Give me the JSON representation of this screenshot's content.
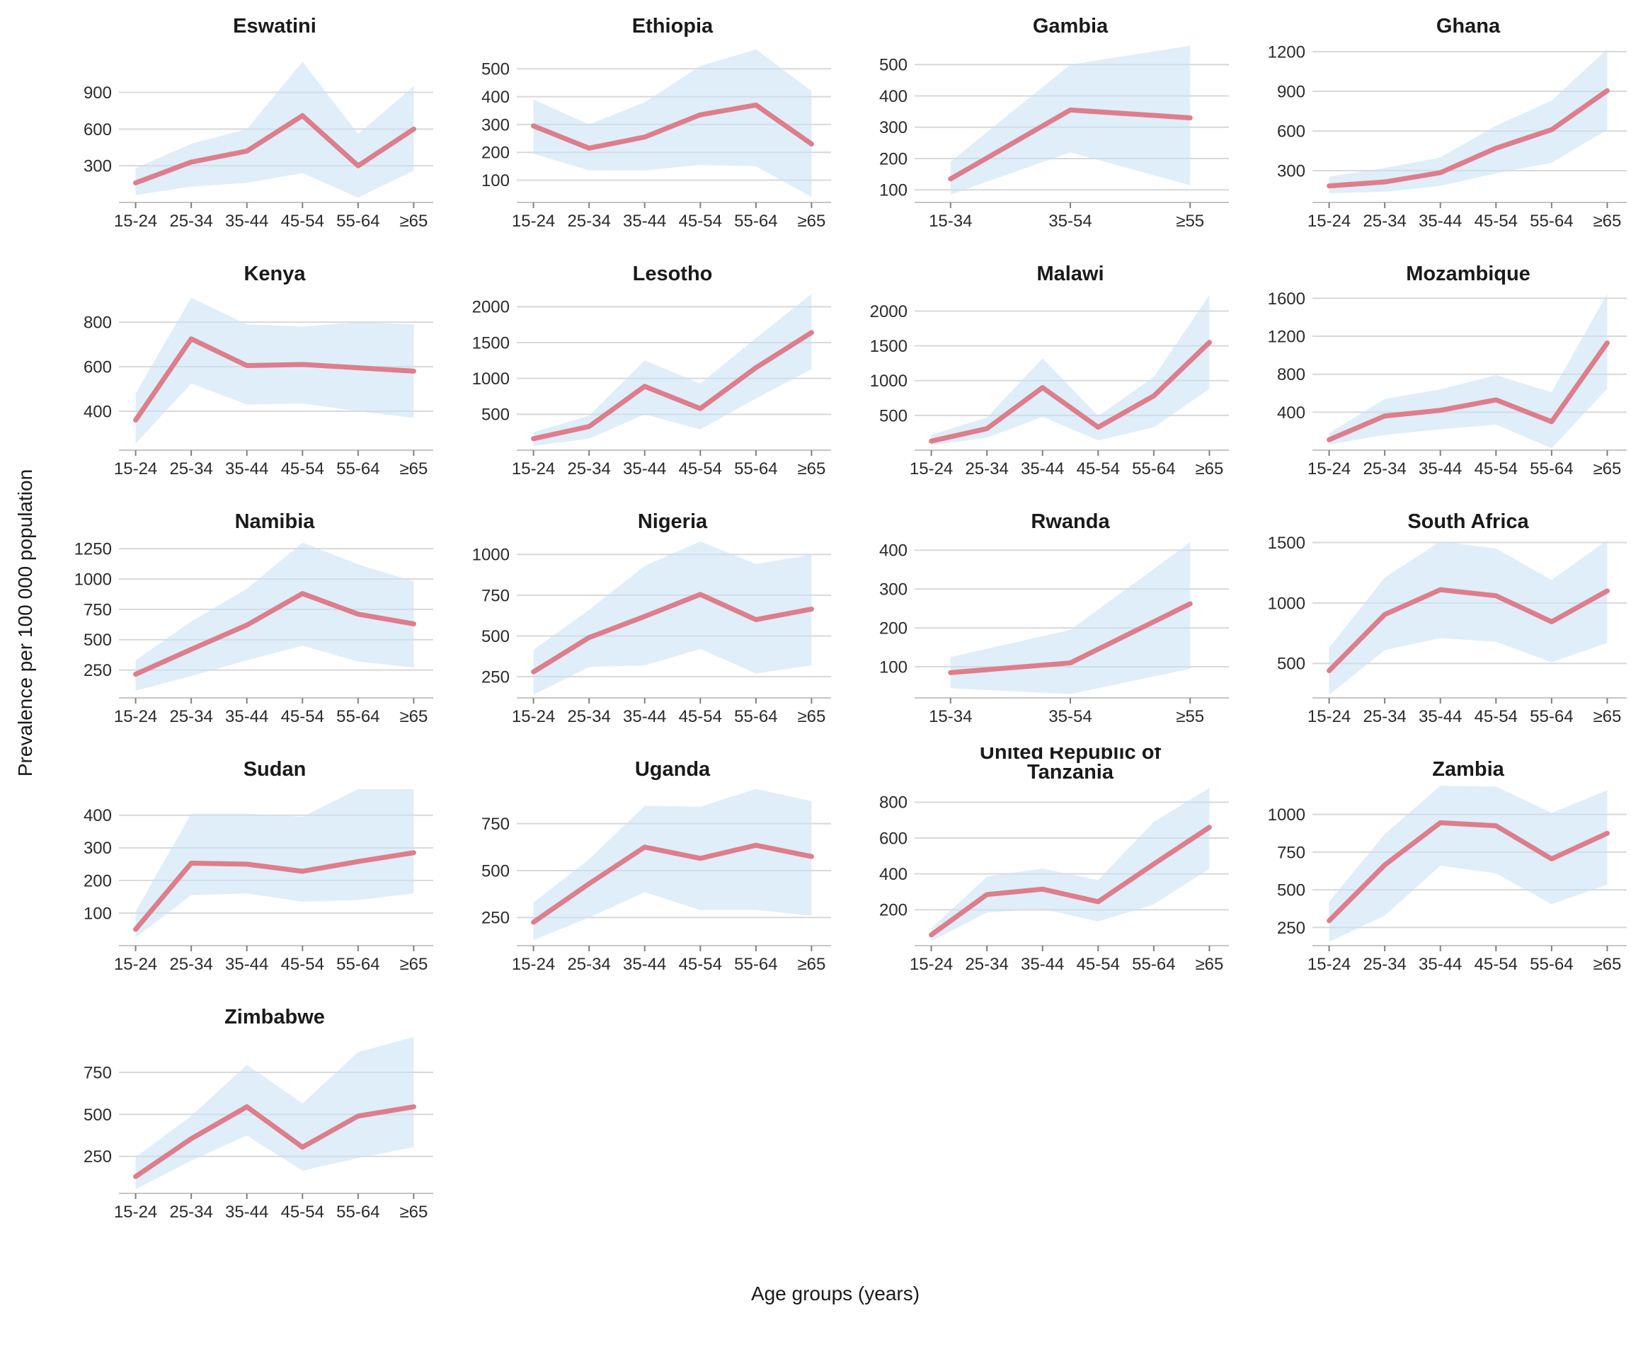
{
  "figure": {
    "kind": "faceted line chart with confidence bands"
  },
  "colors": {
    "line": "#DE7D8B",
    "band": "#C9E2F3",
    "grid": "#D8D8D8",
    "axis_line": "#C6C6C6",
    "tick_mark": "#7F7F7F",
    "tick_text": "#2B2B2B",
    "title_text": "#1A1A1A"
  },
  "chart_data": {
    "type": "line",
    "xlabel": "Age groups (years)",
    "ylabel": "Prevalence per 100 000 population",
    "legend": "none",
    "grid": "horizontal",
    "band_meaning": "uncertainty interval around prevalence estimate",
    "panels": [
      {
        "title_lines": [
          "Eswatini"
        ],
        "categories": [
          "15-24",
          "25-34",
          "35-44",
          "45-54",
          "55-64",
          "≥65"
        ],
        "values": [
          160,
          330,
          420,
          710,
          300,
          600
        ],
        "lower": [
          60,
          130,
          160,
          240,
          40,
          260
        ],
        "upper": [
          280,
          480,
          600,
          1150,
          560,
          950
        ],
        "yticks": [
          300,
          600,
          900
        ],
        "ylim": [
          0,
          1320
        ]
      },
      {
        "title_lines": [
          "Ethiopia"
        ],
        "categories": [
          "15-24",
          "25-34",
          "35-44",
          "45-54",
          "55-64",
          "≥65"
        ],
        "values": [
          295,
          215,
          255,
          335,
          370,
          230
        ],
        "lower": [
          195,
          135,
          135,
          155,
          150,
          40
        ],
        "upper": [
          390,
          300,
          380,
          510,
          570,
          420
        ],
        "yticks": [
          100,
          200,
          300,
          400,
          500
        ],
        "ylim": [
          20,
          600
        ]
      },
      {
        "title_lines": [
          "Gambia"
        ],
        "categories": [
          "15-34",
          "35-54",
          "≥55"
        ],
        "values": [
          135,
          355,
          330
        ],
        "lower": [
          85,
          220,
          115
        ],
        "upper": [
          190,
          500,
          560
        ],
        "yticks": [
          100,
          200,
          300,
          400,
          500
        ],
        "ylim": [
          60,
          575
        ]
      },
      {
        "title_lines": [
          "Ghana"
        ],
        "categories": [
          "15-24",
          "25-34",
          "35-44",
          "45-54",
          "55-64",
          "≥65"
        ],
        "values": [
          185,
          215,
          285,
          470,
          610,
          905
        ],
        "lower": [
          130,
          140,
          185,
          280,
          360,
          610
        ],
        "upper": [
          255,
          320,
          400,
          640,
          830,
          1220
        ],
        "yticks": [
          300,
          600,
          900,
          1200
        ],
        "ylim": [
          60,
          1280
        ]
      },
      {
        "title_lines": [
          "Kenya"
        ],
        "categories": [
          "15-24",
          "25-34",
          "35-44",
          "45-54",
          "55-64",
          "≥65"
        ],
        "values": [
          360,
          725,
          605,
          610,
          595,
          580
        ],
        "lower": [
          255,
          525,
          430,
          435,
          400,
          370
        ],
        "upper": [
          480,
          910,
          790,
          780,
          800,
          790
        ],
        "yticks": [
          400,
          600,
          800
        ],
        "ylim": [
          225,
          950
        ]
      },
      {
        "title_lines": [
          "Lesotho"
        ],
        "categories": [
          "15-24",
          "25-34",
          "35-44",
          "45-54",
          "55-64",
          "≥65"
        ],
        "values": [
          160,
          330,
          890,
          580,
          1150,
          1640
        ],
        "lower": [
          60,
          160,
          500,
          290,
          720,
          1130
        ],
        "upper": [
          250,
          480,
          1250,
          930,
          1560,
          2180
        ],
        "yticks": [
          500,
          1000,
          1500,
          2000
        ],
        "ylim": [
          0,
          2250
        ]
      },
      {
        "title_lines": [
          "Malawi"
        ],
        "categories": [
          "15-24",
          "25-34",
          "35-44",
          "45-54",
          "55-64",
          "≥65"
        ],
        "values": [
          130,
          310,
          900,
          330,
          780,
          1550
        ],
        "lower": [
          70,
          180,
          480,
          140,
          330,
          880
        ],
        "upper": [
          220,
          470,
          1320,
          490,
          1050,
          2230
        ],
        "yticks": [
          500,
          1000,
          1500,
          2000
        ],
        "ylim": [
          0,
          2320
        ]
      },
      {
        "title_lines": [
          "Mozambique"
        ],
        "categories": [
          "15-24",
          "25-34",
          "35-44",
          "45-54",
          "55-64",
          "≥65"
        ],
        "values": [
          110,
          360,
          420,
          530,
          300,
          1130
        ],
        "lower": [
          60,
          160,
          220,
          270,
          20,
          650
        ],
        "upper": [
          180,
          540,
          640,
          790,
          610,
          1650
        ],
        "yticks": [
          400,
          800,
          1200,
          1600
        ],
        "ylim": [
          0,
          1700
        ]
      },
      {
        "title_lines": [
          "Namibia"
        ],
        "categories": [
          "15-24",
          "25-34",
          "35-44",
          "45-54",
          "55-64",
          "≥65"
        ],
        "values": [
          215,
          420,
          620,
          880,
          710,
          630
        ],
        "lower": [
          80,
          200,
          330,
          450,
          320,
          270
        ],
        "upper": [
          330,
          650,
          920,
          1300,
          1120,
          980
        ],
        "yticks": [
          250,
          500,
          750,
          1000,
          1250
        ],
        "ylim": [
          20,
          1350
        ]
      },
      {
        "title_lines": [
          "Nigeria"
        ],
        "categories": [
          "15-24",
          "25-34",
          "35-44",
          "45-54",
          "55-64",
          "≥65"
        ],
        "values": [
          280,
          490,
          620,
          755,
          600,
          665
        ],
        "lower": [
          140,
          310,
          320,
          420,
          270,
          320
        ],
        "upper": [
          415,
          660,
          930,
          1080,
          940,
          1000
        ],
        "yticks": [
          250,
          500,
          750,
          1000
        ],
        "ylim": [
          120,
          1110
        ]
      },
      {
        "title_lines": [
          "Rwanda"
        ],
        "categories": [
          "15-34",
          "35-54",
          "≥55"
        ],
        "values": [
          85,
          110,
          262
        ],
        "lower": [
          45,
          30,
          95
        ],
        "upper": [
          125,
          195,
          420
        ],
        "yticks": [
          100,
          200,
          300,
          400
        ],
        "ylim": [
          20,
          435
        ]
      },
      {
        "title_lines": [
          "South Africa"
        ],
        "categories": [
          "15-24",
          "25-34",
          "35-44",
          "45-54",
          "55-64",
          "≥65"
        ],
        "values": [
          440,
          905,
          1110,
          1060,
          845,
          1100
        ],
        "lower": [
          240,
          610,
          710,
          680,
          510,
          670
        ],
        "upper": [
          630,
          1210,
          1510,
          1450,
          1190,
          1520
        ],
        "yticks": [
          500,
          1000,
          1500
        ],
        "ylim": [
          215,
          1550
        ]
      },
      {
        "title_lines": [
          "Sudan"
        ],
        "categories": [
          "15-24",
          "25-34",
          "35-44",
          "45-54",
          "55-64",
          "≥65"
        ],
        "values": [
          50,
          253,
          250,
          228,
          258,
          285
        ],
        "lower": [
          25,
          155,
          160,
          135,
          140,
          160
        ],
        "upper": [
          105,
          405,
          405,
          395,
          480,
          480
        ],
        "yticks": [
          100,
          200,
          300,
          400
        ],
        "ylim": [
          0,
          495
        ]
      },
      {
        "title_lines": [
          "Uganda"
        ],
        "categories": [
          "15-24",
          "25-34",
          "35-44",
          "45-54",
          "55-64",
          "≥65"
        ],
        "values": [
          225,
          430,
          625,
          565,
          635,
          575
        ],
        "lower": [
          130,
          250,
          385,
          290,
          290,
          260
        ],
        "upper": [
          330,
          560,
          845,
          840,
          935,
          870
        ],
        "yticks": [
          250,
          500,
          750
        ],
        "ylim": [
          100,
          960
        ]
      },
      {
        "title_lines": [
          "United Republic of",
          "Tanzania"
        ],
        "categories": [
          "15-24",
          "25-34",
          "35-44",
          "45-54",
          "55-64",
          "≥65"
        ],
        "values": [
          60,
          285,
          315,
          245,
          455,
          660
        ],
        "lower": [
          25,
          185,
          205,
          135,
          230,
          430
        ],
        "upper": [
          95,
          385,
          430,
          365,
          690,
          880
        ],
        "yticks": [
          200,
          400,
          600,
          800
        ],
        "ylim": [
          0,
          900
        ]
      },
      {
        "title_lines": [
          "Zambia"
        ],
        "categories": [
          "15-24",
          "25-34",
          "35-44",
          "45-54",
          "55-64",
          "≥65"
        ],
        "values": [
          295,
          665,
          945,
          925,
          705,
          875
        ],
        "lower": [
          155,
          330,
          660,
          610,
          405,
          535
        ],
        "upper": [
          420,
          870,
          1190,
          1185,
          1010,
          1160
        ],
        "yticks": [
          250,
          500,
          750,
          1000
        ],
        "ylim": [
          130,
          1200
        ]
      },
      {
        "title_lines": [
          "Zimbabwe"
        ],
        "categories": [
          "15-24",
          "25-34",
          "35-44",
          "45-54",
          "55-64",
          "≥65"
        ],
        "values": [
          130,
          355,
          545,
          305,
          490,
          545
        ],
        "lower": [
          55,
          225,
          375,
          165,
          240,
          305
        ],
        "upper": [
          245,
          490,
          795,
          565,
          870,
          960
        ],
        "yticks": [
          250,
          500,
          750
        ],
        "ylim": [
          30,
          990
        ]
      }
    ]
  }
}
